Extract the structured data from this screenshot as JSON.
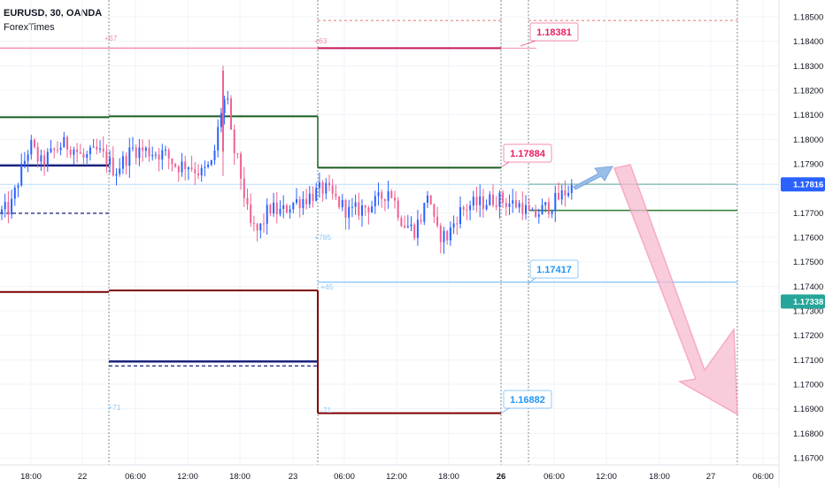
{
  "header": {
    "symbol_line": "EURUSD, 30, OANDA",
    "publisher": "ForexTimes"
  },
  "chart_data": {
    "type": "candlestick",
    "ylim": [
      1.1667,
      1.1856
    ],
    "y_ticks": [
      "1.16700",
      "1.16800",
      "1.16900",
      "1.17000",
      "1.17100",
      "1.17200",
      "1.17300",
      "1.17400",
      "1.17500",
      "1.17600",
      "1.17700",
      "1.17800",
      "1.17900",
      "1.18000",
      "1.18100",
      "1.18200",
      "1.18300",
      "1.18400",
      "1.18500"
    ],
    "x_tick_labels": [
      "18:00",
      "22",
      "06:00",
      "12:00",
      "18:00",
      "23",
      "06:00",
      "12:00",
      "18:00",
      "26",
      "06:00",
      "12:00",
      "18:00",
      "27",
      "06:00"
    ],
    "bold_x_label": "26",
    "price_badges": [
      {
        "label": "1.17816",
        "value": 1.17816,
        "color": "#2962ff"
      },
      {
        "label": "1.17338",
        "value": 1.17338,
        "color": "#26a69a"
      }
    ],
    "level_labels": [
      {
        "label": "1.18381",
        "value": 1.18381,
        "color": "#e91e63"
      },
      {
        "label": "1.17884",
        "value": 1.17884,
        "color": "#e91e63"
      },
      {
        "label": "1.17417",
        "value": 1.17417,
        "color": "#2196f3"
      },
      {
        "label": "1.16882",
        "value": 1.16882,
        "color": "#2196f3"
      }
    ],
    "small_annotations": [
      "+67",
      "+63",
      "+785",
      "+45",
      "+71",
      "-71"
    ],
    "candle_colors": {
      "up": "#2962ff",
      "down": "#f06292"
    },
    "forecast": {
      "up_arrow_color": "#90b8e8",
      "down_arrow_color": "#f8bbd0"
    }
  },
  "colors": {
    "grid": "#f0f3fa",
    "axis_text": "#131722",
    "pivot_pink": "#f48fb1",
    "resistance": "#1b5e20",
    "pivot_navy": "#1a237e",
    "support": "#7f0000",
    "current_line": "#90caf9"
  }
}
